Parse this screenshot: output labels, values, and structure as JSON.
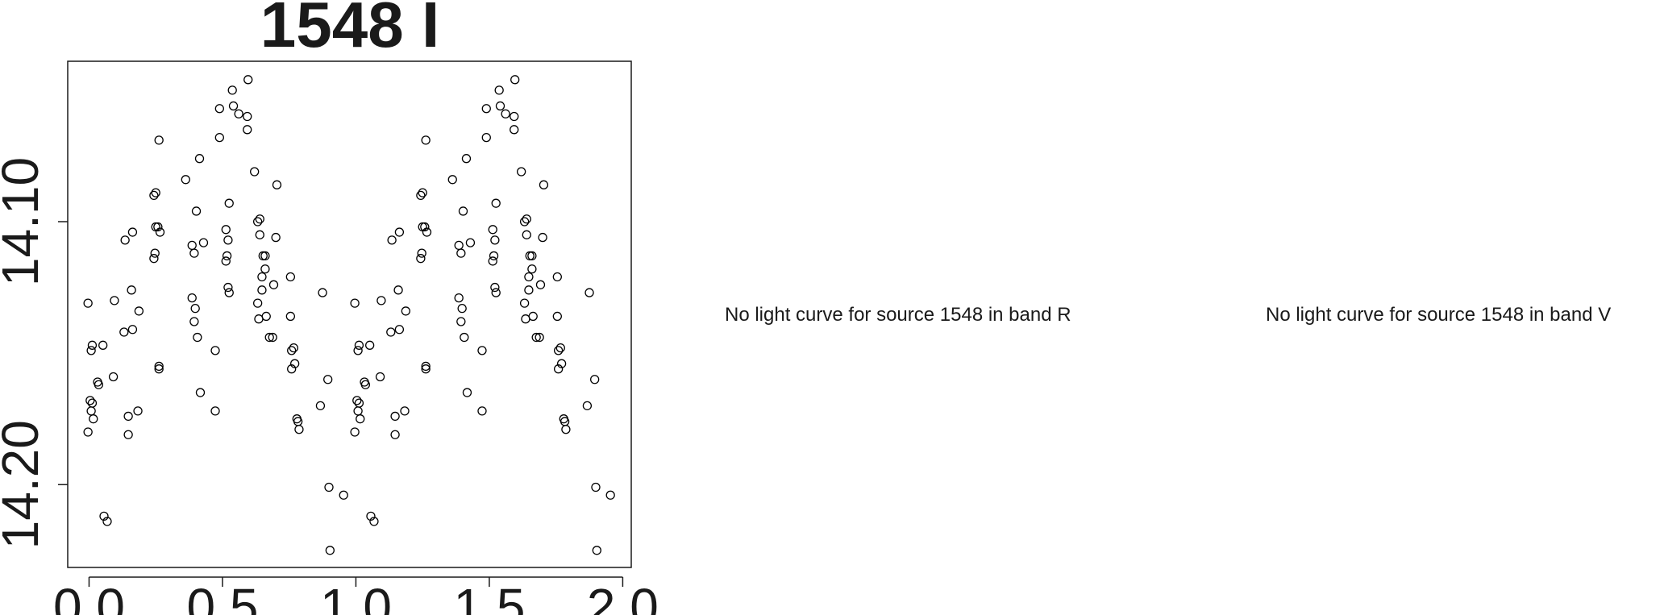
{
  "chart_data": {
    "type": "scatter",
    "title": "1548 I",
    "color": "#000000",
    "x": [
      -0.004,
      0.008,
      0.012,
      0.004,
      0.012,
      0.008,
      0.016,
      -0.004,
      0.032,
      0.036,
      0.052,
      0.056,
      0.068,
      0.095,
      0.091,
      0.131,
      0.135,
      0.147,
      0.147,
      0.159,
      0.163,
      0.163,
      0.183,
      0.187,
      0.243,
      0.243,
      0.25,
      0.247,
      0.25,
      0.258,
      0.262,
      0.262,
      0.266,
      0.262,
      0.362,
      0.386,
      0.386,
      0.394,
      0.394,
      0.398,
      0.402,
      0.406,
      0.414,
      0.417,
      0.429,
      0.473,
      0.473,
      0.489,
      0.489,
      0.513,
      0.513,
      0.517,
      0.521,
      0.521,
      0.525,
      0.525,
      0.537,
      0.541,
      0.561,
      0.593,
      0.593,
      0.596,
      0.62,
      0.632,
      0.632,
      0.636,
      0.64,
      0.64,
      0.648,
      0.648,
      0.652,
      0.66,
      0.66,
      0.664,
      0.676,
      0.688,
      0.692,
      0.7,
      0.704,
      0.755,
      0.755,
      0.759,
      0.759,
      0.767,
      0.771,
      0.779,
      0.783,
      0.787,
      0.867,
      0.875,
      0.895,
      0.899,
      0.903,
      0.954,
      0.996,
      1.008,
      1.012,
      1.004,
      1.012,
      1.008,
      1.016,
      0.996,
      1.032,
      1.036,
      1.052,
      1.056,
      1.068,
      1.095,
      1.091,
      1.131,
      1.135,
      1.147,
      1.147,
      1.159,
      1.163,
      1.163,
      1.183,
      1.187,
      1.243,
      1.243,
      1.25,
      1.247,
      1.25,
      1.258,
      1.262,
      1.262,
      1.266,
      1.262,
      1.362,
      1.386,
      1.386,
      1.394,
      1.394,
      1.398,
      1.402,
      1.406,
      1.414,
      1.417,
      1.429,
      1.473,
      1.473,
      1.489,
      1.489,
      1.513,
      1.513,
      1.517,
      1.521,
      1.521,
      1.525,
      1.525,
      1.537,
      1.541,
      1.561,
      1.593,
      1.593,
      1.596,
      1.62,
      1.632,
      1.632,
      1.636,
      1.64,
      1.64,
      1.648,
      1.648,
      1.652,
      1.66,
      1.66,
      1.664,
      1.676,
      1.688,
      1.692,
      1.7,
      1.704,
      1.755,
      1.755,
      1.759,
      1.759,
      1.767,
      1.771,
      1.779,
      1.783,
      1.787,
      1.867,
      1.875,
      1.895,
      1.899,
      1.903,
      1.954
    ],
    "values": [
      14.131,
      14.149,
      14.147,
      14.168,
      14.169,
      14.172,
      14.175,
      14.18,
      14.161,
      14.162,
      14.147,
      14.212,
      14.214,
      14.13,
      14.159,
      14.142,
      14.107,
      14.174,
      14.181,
      14.126,
      14.104,
      14.141,
      14.172,
      14.134,
      14.114,
      14.09,
      14.089,
      14.112,
      14.102,
      14.102,
      14.155,
      14.156,
      14.104,
      14.069,
      14.084,
      14.109,
      14.129,
      14.112,
      14.138,
      14.133,
      14.096,
      14.144,
      14.076,
      14.165,
      14.108,
      14.149,
      14.172,
      14.068,
      14.057,
      14.115,
      14.103,
      14.113,
      14.107,
      14.125,
      14.127,
      14.093,
      14.05,
      14.056,
      14.059,
      14.06,
      14.065,
      14.046,
      14.081,
      14.1,
      14.131,
      14.137,
      14.099,
      14.105,
      14.121,
      14.126,
      14.113,
      14.113,
      14.118,
      14.136,
      14.144,
      14.144,
      14.124,
      14.106,
      14.086,
      14.121,
      14.136,
      14.149,
      14.156,
      14.148,
      14.154,
      14.175,
      14.176,
      14.179,
      14.17,
      14.127,
      14.16,
      14.201,
      14.225,
      14.204,
      14.131,
      14.149,
      14.147,
      14.168,
      14.169,
      14.172,
      14.175,
      14.18,
      14.161,
      14.162,
      14.147,
      14.212,
      14.214,
      14.13,
      14.159,
      14.142,
      14.107,
      14.174,
      14.181,
      14.126,
      14.104,
      14.141,
      14.172,
      14.134,
      14.114,
      14.09,
      14.089,
      14.112,
      14.102,
      14.102,
      14.155,
      14.156,
      14.104,
      14.069,
      14.084,
      14.109,
      14.129,
      14.112,
      14.138,
      14.133,
      14.096,
      14.144,
      14.076,
      14.165,
      14.108,
      14.149,
      14.172,
      14.068,
      14.057,
      14.115,
      14.103,
      14.113,
      14.107,
      14.125,
      14.127,
      14.093,
      14.05,
      14.056,
      14.059,
      14.06,
      14.065,
      14.046,
      14.081,
      14.1,
      14.131,
      14.137,
      14.099,
      14.105,
      14.121,
      14.126,
      14.113,
      14.113,
      14.118,
      14.136,
      14.144,
      14.144,
      14.124,
      14.106,
      14.086,
      14.121,
      14.136,
      14.149,
      14.156,
      14.148,
      14.154,
      14.175,
      14.176,
      14.179,
      14.17,
      14.127,
      14.16,
      14.201,
      14.225,
      14.204
    ],
    "xlim": [
      -0.08,
      2.032
    ],
    "ylim": [
      14.2315,
      14.039
    ],
    "xticks": [
      {
        "value": 0,
        "label": "0.0"
      },
      {
        "value": 0.5,
        "label": "0.5"
      },
      {
        "value": 1,
        "label": "1.0"
      },
      {
        "value": 1.5,
        "label": "1.5"
      },
      {
        "value": 2,
        "label": "2.0"
      }
    ],
    "yticks": [
      {
        "value": 14.1,
        "label": "14.10"
      },
      {
        "value": 14.2,
        "label": "14.20"
      }
    ]
  },
  "messages": [
    "No light curve for source 1548 in band R",
    "No light curve for source 1548 in band V"
  ]
}
